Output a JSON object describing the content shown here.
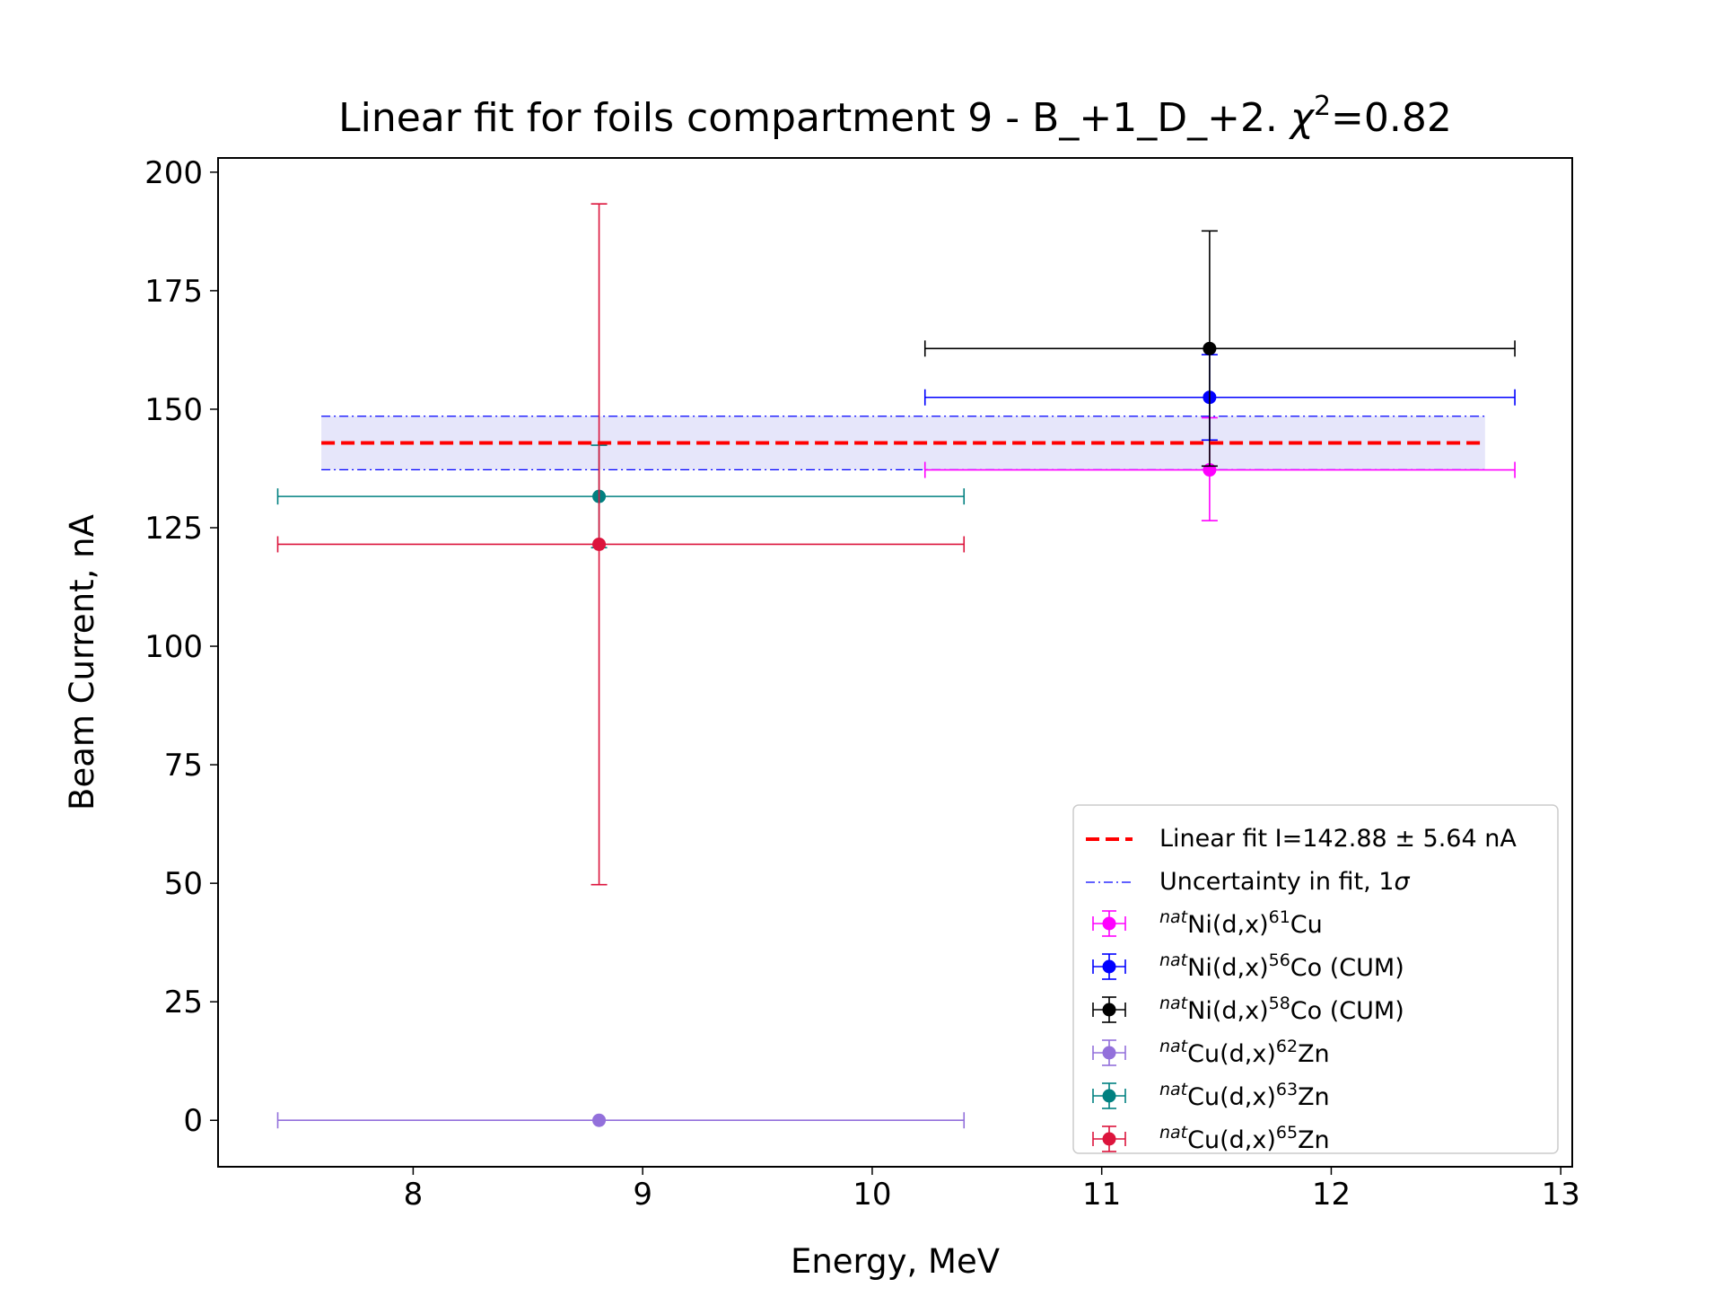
{
  "chart_data": {
    "type": "scatter",
    "title": "Linear fit for foils compartment 9 - B_+1_D_+2. ",
    "title_chi": "χ",
    "title_chi_sup": "2",
    "title_chi_value": "=0.82",
    "xlabel": "Energy, MeV",
    "ylabel": "Beam Current, nA",
    "xlim": [
      7.15,
      13.05
    ],
    "ylim": [
      -9.8,
      203
    ],
    "xticks": [
      8,
      9,
      10,
      11,
      12,
      13
    ],
    "yticks": [
      0,
      25,
      50,
      75,
      100,
      125,
      150,
      175,
      200
    ],
    "grid": false,
    "legend_position": "lower-right",
    "fit": {
      "label": "Linear fit I=142.88 ± 5.64 nA",
      "value": 142.88,
      "sigma": 5.64,
      "x_range": [
        7.6,
        12.67
      ],
      "color": "#ff0000"
    },
    "band": {
      "label": "Uncertainty in fit, 1",
      "label_sigma": "σ",
      "lower": 137.24,
      "upper": 148.52,
      "x_range": [
        7.6,
        12.67
      ],
      "line_color": "#0000ff",
      "fill_color": "#e6e6fa"
    },
    "series": [
      {
        "prefix": "nat",
        "name_a": "Ni(d,x)",
        "iso": "61",
        "name_b": "Cu",
        "color": "#ff00ff",
        "x": 11.47,
        "xerr_low": 1.24,
        "xerr_high": 1.33,
        "y": 137.2,
        "yerr_low": 10.7,
        "yerr_high": 11.0
      },
      {
        "prefix": "nat",
        "name_a": "Ni(d,x)",
        "iso": "56",
        "name_b": "Co (CUM)",
        "color": "#0000ff",
        "x": 11.47,
        "xerr_low": 1.24,
        "xerr_high": 1.33,
        "y": 152.5,
        "yerr_low": 9.0,
        "yerr_high": 9.0
      },
      {
        "prefix": "nat",
        "name_a": "Ni(d,x)",
        "iso": "58",
        "name_b": "Co (CUM)",
        "color": "#000000",
        "x": 11.47,
        "xerr_low": 1.24,
        "xerr_high": 1.33,
        "y": 162.8,
        "yerr_low": 24.8,
        "yerr_high": 24.8
      },
      {
        "prefix": "nat",
        "name_a": "Cu(d,x)",
        "iso": "62",
        "name_b": "Zn",
        "color": "#9370db",
        "x": 8.81,
        "xerr_low": 1.4,
        "xerr_high": 1.59,
        "y": 0,
        "yerr_low": 0,
        "yerr_high": 0
      },
      {
        "prefix": "nat",
        "name_a": "Cu(d,x)",
        "iso": "63",
        "name_b": "Zn",
        "color": "#008080",
        "x": 8.81,
        "xerr_low": 1.4,
        "xerr_high": 1.59,
        "y": 131.6,
        "yerr_low": 10.8,
        "yerr_high": 10.8
      },
      {
        "prefix": "nat",
        "name_a": "Cu(d,x)",
        "iso": "65",
        "name_b": "Zn",
        "color": "#dc143c",
        "x": 8.81,
        "xerr_low": 1.4,
        "xerr_high": 1.59,
        "y": 121.5,
        "yerr_low": 71.8,
        "yerr_high": 71.8
      }
    ]
  }
}
